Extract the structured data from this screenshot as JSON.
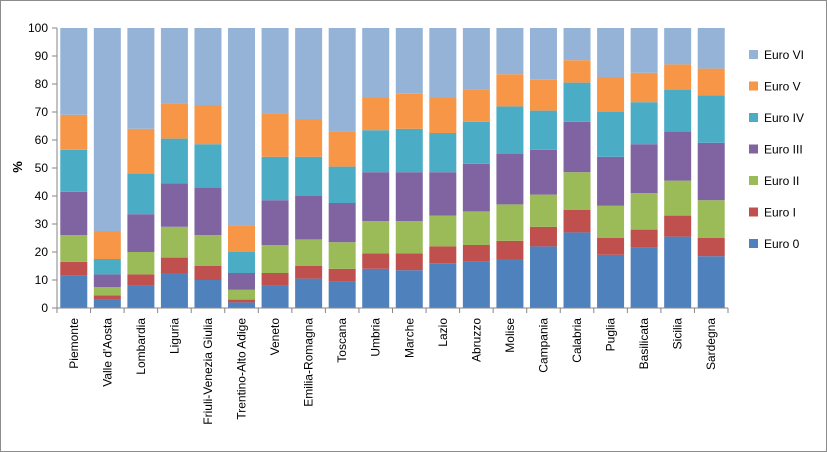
{
  "chart_data": {
    "type": "bar",
    "stacked": true,
    "percent_stacked": true,
    "title": "",
    "xlabel": "",
    "ylabel": "%",
    "ylim": [
      0,
      100
    ],
    "yticks": [
      0,
      10,
      20,
      30,
      40,
      50,
      60,
      70,
      80,
      90,
      100
    ],
    "grid": false,
    "legend_position": "right",
    "categories": [
      "Piemonte",
      "Valle d'Aosta",
      "Lombardia",
      "Liguria",
      "Friuli-Venezia Giulia",
      "Trentino-Alto Adige",
      "Veneto",
      "Emilia-Romagna",
      "Toscana",
      "Umbria",
      "Marche",
      "Lazio",
      "Abruzzo",
      "Molise",
      "Campania",
      "Calabria",
      "Puglia",
      "Basilicata",
      "Sicilia",
      "Sardegna"
    ],
    "series": [
      {
        "name": "Euro 0",
        "color": "#4f81bd",
        "values": [
          11.5,
          3.0,
          8.0,
          12.5,
          10.0,
          2.0,
          8.0,
          10.5,
          9.5,
          14.0,
          13.5,
          16.0,
          16.5,
          17.5,
          22.0,
          27.0,
          19.0,
          21.5,
          25.5,
          18.5
        ]
      },
      {
        "name": "Euro I",
        "color": "#c0504d",
        "values": [
          5.0,
          1.5,
          4.0,
          5.5,
          5.0,
          1.0,
          4.5,
          4.5,
          4.5,
          5.5,
          6.0,
          6.0,
          6.0,
          6.5,
          7.0,
          8.0,
          6.0,
          6.5,
          7.5,
          6.5
        ]
      },
      {
        "name": "Euro II",
        "color": "#9bbb59",
        "values": [
          9.5,
          3.0,
          8.0,
          11.0,
          11.0,
          3.5,
          10.0,
          9.5,
          9.5,
          11.5,
          11.5,
          11.0,
          12.0,
          13.0,
          11.5,
          13.5,
          11.5,
          13.0,
          12.5,
          13.5
        ]
      },
      {
        "name": "Euro III",
        "color": "#8064a2",
        "values": [
          15.5,
          4.5,
          13.5,
          15.5,
          17.0,
          6.0,
          16.0,
          15.5,
          14.0,
          17.5,
          17.5,
          15.5,
          17.0,
          18.0,
          16.0,
          18.0,
          17.5,
          17.5,
          17.5,
          20.5
        ]
      },
      {
        "name": "Euro IV",
        "color": "#4bacc6",
        "values": [
          15.0,
          5.5,
          14.5,
          16.0,
          15.5,
          7.5,
          15.5,
          14.0,
          13.0,
          15.0,
          15.5,
          14.0,
          15.0,
          17.0,
          14.0,
          14.0,
          16.0,
          15.0,
          15.0,
          17.0
        ]
      },
      {
        "name": "Euro V",
        "color": "#f79646",
        "values": [
          12.5,
          10.0,
          16.0,
          12.5,
          14.0,
          9.5,
          15.5,
          13.5,
          12.5,
          11.5,
          12.5,
          12.5,
          11.5,
          11.5,
          11.0,
          8.0,
          12.5,
          10.5,
          9.0,
          9.5
        ]
      },
      {
        "name": "Euro VI",
        "color": "#95b3d7",
        "values": [
          31.0,
          72.5,
          36.0,
          27.0,
          27.5,
          70.5,
          30.5,
          32.5,
          37.0,
          25.0,
          23.5,
          25.0,
          22.0,
          16.5,
          18.5,
          11.5,
          17.5,
          16.0,
          13.0,
          14.5
        ]
      }
    ],
    "legend_order": [
      "Euro VI",
      "Euro V",
      "Euro IV",
      "Euro III",
      "Euro II",
      "Euro I",
      "Euro 0"
    ],
    "axis_color": "#868686"
  }
}
